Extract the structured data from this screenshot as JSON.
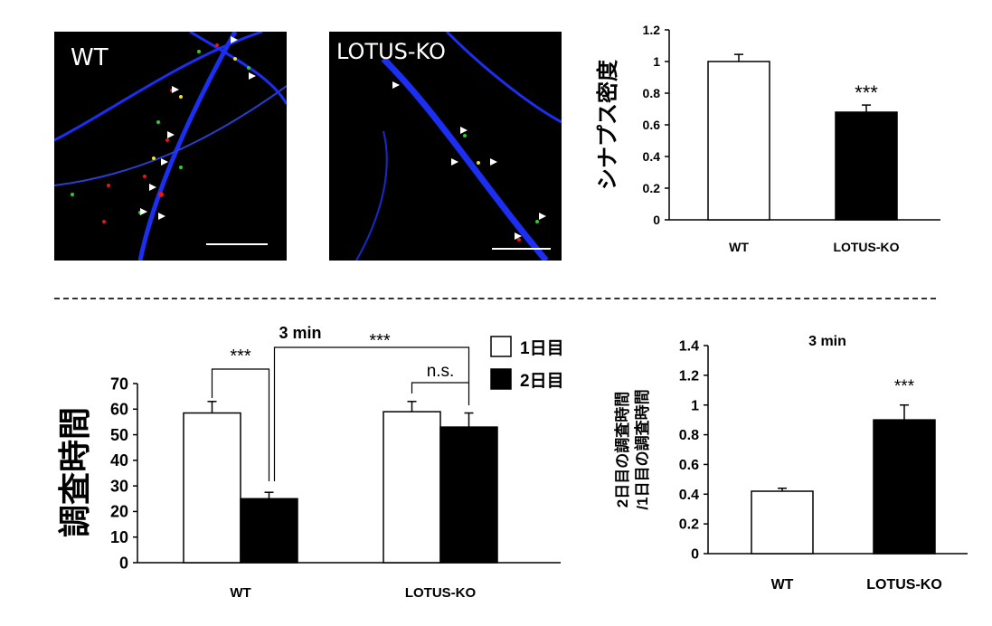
{
  "micrographs": [
    {
      "label": "WT"
    },
    {
      "label": "LOTUS-KO"
    }
  ],
  "colors": {
    "axon": "#1c2ff0",
    "puncta_red": "#e51616",
    "puncta_green": "#2bd12b",
    "puncta_yellow": "#f2dd37",
    "bar_day1": "#ffffff",
    "bar_day2": "#000000"
  },
  "chart_data": [
    {
      "id": "synapse_density",
      "type": "bar",
      "ylabel": "シナプス密度",
      "categories": [
        "WT",
        "LOTUS-KO"
      ],
      "values": [
        1.0,
        0.68
      ],
      "errors": [
        0.045,
        0.045
      ],
      "fills": [
        "#ffffff",
        "#000000"
      ],
      "ylim": [
        0,
        1.2
      ],
      "yticks": [
        "0",
        "0.2",
        "0.4",
        "0.6",
        "0.8",
        "1",
        "1.2"
      ],
      "significance": [
        {
          "category": "LOTUS-KO",
          "label": "***"
        }
      ]
    },
    {
      "id": "exploration_time",
      "type": "bar",
      "ylabel": "調査時間",
      "categories": [
        "WT",
        "LOTUS-KO"
      ],
      "series": [
        {
          "name": "1日目",
          "values": [
            58.5,
            59
          ],
          "errors": [
            4.5,
            4
          ]
        },
        {
          "name": "2日目",
          "values": [
            25,
            53
          ],
          "errors": [
            2.5,
            5.5
          ]
        }
      ],
      "ylim": [
        0,
        70
      ],
      "yticks": [
        "0",
        "10",
        "20",
        "30",
        "40",
        "50",
        "60",
        "70"
      ],
      "legend_labels": [
        "1日目",
        "2日目"
      ],
      "annotation": "3 min",
      "significance": [
        {
          "label": "***",
          "between": "WT 1日目 vs WT 2日目"
        },
        {
          "label": "n.s.",
          "between": "LOTUS-KO 1日目 vs LOTUS-KO 2日目"
        },
        {
          "label": "***",
          "between": "WT 2日目 vs LOTUS-KO 2日目"
        }
      ]
    },
    {
      "id": "ratio",
      "type": "bar",
      "title": "3 min",
      "ylabel_lines": [
        "2日目の調査時間",
        "/1日目の調査時間"
      ],
      "categories": [
        "WT",
        "LOTUS-KO"
      ],
      "values": [
        0.42,
        0.9
      ],
      "errors": [
        0.02,
        0.1
      ],
      "fills": [
        "#ffffff",
        "#000000"
      ],
      "ylim": [
        0,
        1.4
      ],
      "yticks": [
        "0",
        "0.2",
        "0.4",
        "0.6",
        "0.8",
        "1",
        "1.2",
        "1.4"
      ],
      "significance": [
        {
          "category": "LOTUS-KO",
          "label": "***"
        }
      ]
    }
  ]
}
